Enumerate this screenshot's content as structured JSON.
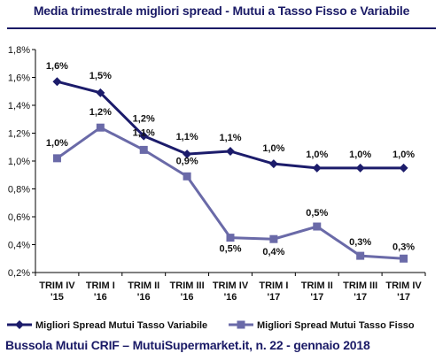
{
  "chart_data": {
    "type": "line",
    "title": "Media trimestrale migliori spread - Mutui a Tasso Fisso e Variabile",
    "categories": [
      [
        "TRIM IV",
        "'15"
      ],
      [
        "TRIM I",
        "'16"
      ],
      [
        "TRIM II",
        "'16"
      ],
      [
        "TRIM III",
        "'16"
      ],
      [
        "TRIM IV",
        "'16"
      ],
      [
        "TRIM I",
        "'17"
      ],
      [
        "TRIM II",
        "'17"
      ],
      [
        "TRIM III",
        "'17"
      ],
      [
        "TRIM IV",
        "'17"
      ]
    ],
    "ylim": [
      0.2,
      1.8
    ],
    "yticks": [
      "0,2%",
      "0,4%",
      "0,6%",
      "0,8%",
      "1,0%",
      "1,2%",
      "1,4%",
      "1,6%",
      "1,8%"
    ],
    "grid": false,
    "legend_position": "bottom",
    "series": [
      {
        "name": "Migliori Spread Mutui Tasso Variabile",
        "color": "#1c1c6b",
        "marker": "diamond",
        "values": [
          1.57,
          1.49,
          1.18,
          1.05,
          1.07,
          0.98,
          0.95,
          0.95,
          0.95
        ],
        "labels": [
          "1,6%",
          "1,5%",
          "1,2%",
          "1,1%",
          "1,1%",
          "1,0%",
          "1,0%",
          "1,0%",
          "1,0%"
        ]
      },
      {
        "name": "Migliori Spread Mutui Tasso Fisso",
        "color": "#6a6aa8",
        "marker": "square",
        "values": [
          1.02,
          1.24,
          1.08,
          0.89,
          0.45,
          0.44,
          0.53,
          0.32,
          0.3
        ],
        "labels": [
          "1,0%",
          "1,2%",
          "1,1%",
          "0,9%",
          "0,5%",
          "0,4%",
          "0,5%",
          "0,3%",
          "0,3%"
        ]
      }
    ]
  },
  "footer": {
    "source": "Bussola Mutui CRIF – MutuiSupermarket.it, n. 22 - gennaio 2018"
  }
}
